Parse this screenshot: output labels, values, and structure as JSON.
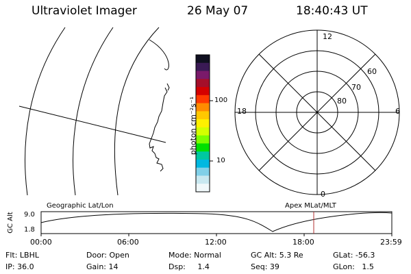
{
  "header": {
    "instrument": "Ultraviolet Imager",
    "date": "26 May 07",
    "time": "18:40:43 UT"
  },
  "colorbar": {
    "unit_label": "photon cm⁻²s⁻¹",
    "ticks": [
      "100",
      "10"
    ],
    "colors": [
      "#101020",
      "#3a1a55",
      "#7a1a6a",
      "#a50f2a",
      "#d40000",
      "#ff3a00",
      "#ff8c00",
      "#ffc800",
      "#fff000",
      "#d4ff00",
      "#7cff00",
      "#00e000",
      "#00c8a0",
      "#00b8e0",
      "#80d0e8",
      "#c8e8f0",
      "#f0f8fa"
    ]
  },
  "polar_plot": {
    "mlt_labels": {
      "top": "12",
      "left": "18",
      "right": "6",
      "bottom": "0"
    },
    "lat_labels": [
      "60",
      "70",
      "80"
    ]
  },
  "timeline": {
    "y_axis_label": "GC Alt",
    "y_ticks": [
      "9.0",
      "1.8"
    ],
    "left_label": "Geographic Lat/Lon",
    "right_label": "Apex MLat/MLT",
    "x_ticks": [
      "00:00",
      "06:00",
      "12:00",
      "18:00",
      "23:59"
    ],
    "marker_color": "#b03030"
  },
  "footer": {
    "row1": {
      "flt": "Flt: LBHL",
      "door": "Door: Open",
      "mode": "Mode: Normal",
      "gc_alt": "GC Alt: 5.3 Re",
      "glat": "GLat: -56.3"
    },
    "row2": {
      "ip": "IP: 36.0",
      "gain": "Gain: 14",
      "dsp": "Dsp:     1.4",
      "seq": "Seq: 39",
      "glon": "GLon:   1.5"
    }
  }
}
